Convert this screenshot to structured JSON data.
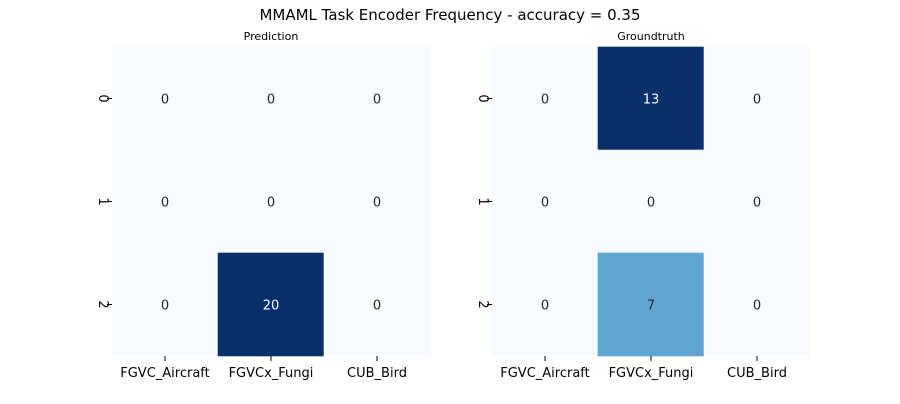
{
  "chart_data": {
    "type": "heatmap",
    "title": "MMAML Task Encoder Frequency - accuracy = 0.35",
    "colormap": "Blues",
    "colormap_low": "#f7fbff",
    "colormap_high": "#08306b",
    "panels": [
      {
        "title": "Prediction",
        "x_categories": [
          "FGVC_Aircraft",
          "FGVCx_Fungi",
          "CUB_Bird"
        ],
        "y_categories": [
          "0",
          "1",
          "2"
        ],
        "values": [
          [
            0,
            0,
            0
          ],
          [
            0,
            0,
            0
          ],
          [
            0,
            20,
            0
          ]
        ],
        "vmin": 0,
        "vmax": 20
      },
      {
        "title": "Groundtruth",
        "x_categories": [
          "FGVC_Aircraft",
          "FGVCx_Fungi",
          "CUB_Bird"
        ],
        "y_categories": [
          "0",
          "1",
          "2"
        ],
        "values": [
          [
            0,
            13,
            0
          ],
          [
            0,
            0,
            0
          ],
          [
            0,
            7,
            0
          ]
        ],
        "vmin": 0,
        "vmax": 13
      }
    ]
  }
}
